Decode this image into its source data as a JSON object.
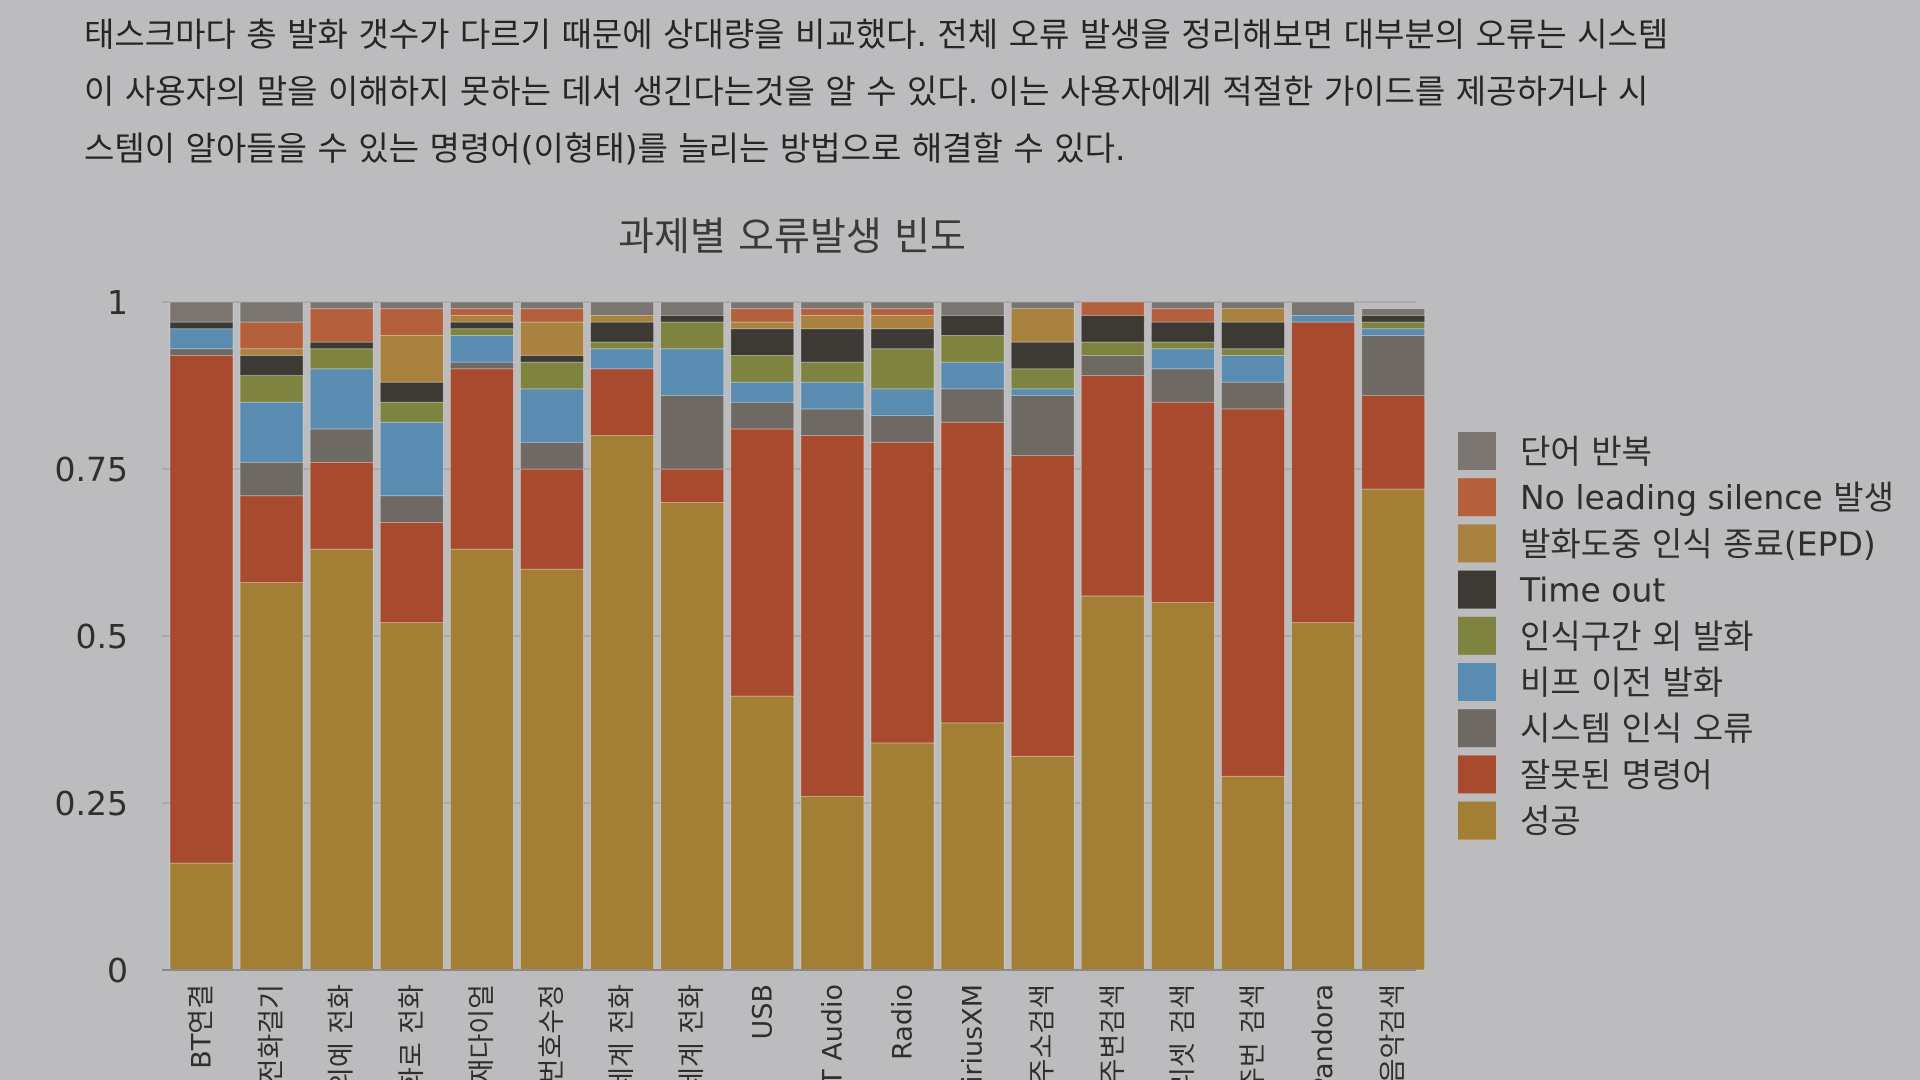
{
  "intro": {
    "line1": "태스크마다 총 발화 갯수가 다르기 때문에 상대량을 비교했다. 전체 오류 발생을 정리해보면 대부분의 오류는 시스템",
    "line2": "이 사용자의 말을 이해하지 못하는 데서 생긴다는것을 알 수 있다. 이는 사용자에게 적절한 가이드를 제공하거나 시",
    "line3": "스템이 알아들을 수 있는 명령어(이형태)를 늘리는 방법으로 해결할 수 있다."
  },
  "chart_data": {
    "type": "bar",
    "stacked": true,
    "title": "과제별 오류발생 빈도",
    "xlabel": "",
    "ylabel": "",
    "ylim": [
      0,
      1
    ],
    "y_ticks": [
      "0",
      "0.25",
      "0.5",
      "0.75",
      "1"
    ],
    "grid": true,
    "legend_position": "right",
    "categories": [
      "BT연결",
      "전화걸기",
      "의예 전화",
      "통화로 전화",
      "재다이얼",
      "번호수정",
      "세계 전화",
      "세계 전화",
      "USB",
      "T Audio",
      "Radio",
      "iriusXM",
      "주소검색",
      "주변검색",
      "리셋 검색",
      "주번 검색",
      "Pandora",
      "음악검색"
    ],
    "series": [
      {
        "name": "성공",
        "color": "#a27f34",
        "values": [
          0.16,
          0.58,
          0.63,
          0.52,
          0.63,
          0.6,
          0.8,
          0.7,
          0.41,
          0.26,
          0.34,
          0.37,
          0.32,
          0.56,
          0.55,
          0.29,
          0.52,
          0.72
        ]
      },
      {
        "name": "잘못된 명령어",
        "color": "#a84a2d",
        "values": [
          0.76,
          0.13,
          0.13,
          0.15,
          0.27,
          0.15,
          0.1,
          0.05,
          0.4,
          0.54,
          0.45,
          0.45,
          0.45,
          0.33,
          0.3,
          0.55,
          0.45,
          0.14
        ]
      },
      {
        "name": "시스템 인식 오류",
        "color": "#6e6963",
        "values": [
          0.01,
          0.05,
          0.05,
          0.04,
          0.01,
          0.04,
          0.0,
          0.11,
          0.04,
          0.04,
          0.04,
          0.05,
          0.09,
          0.03,
          0.05,
          0.04,
          0.0,
          0.09
        ]
      },
      {
        "name": "비프 이전 발화",
        "color": "#5a8bb0",
        "values": [
          0.03,
          0.09,
          0.09,
          0.11,
          0.04,
          0.08,
          0.03,
          0.07,
          0.03,
          0.04,
          0.04,
          0.04,
          0.01,
          0.0,
          0.03,
          0.04,
          0.01,
          0.01
        ]
      },
      {
        "name": "인식구간 외 발화",
        "color": "#7f8340",
        "values": [
          0.0,
          0.04,
          0.03,
          0.03,
          0.01,
          0.04,
          0.01,
          0.04,
          0.04,
          0.03,
          0.06,
          0.04,
          0.03,
          0.02,
          0.01,
          0.01,
          0.0,
          0.01
        ]
      },
      {
        "name": "Time out",
        "color": "#3d3a36",
        "values": [
          0.01,
          0.03,
          0.01,
          0.03,
          0.01,
          0.01,
          0.03,
          0.01,
          0.04,
          0.05,
          0.03,
          0.03,
          0.04,
          0.04,
          0.03,
          0.04,
          0.0,
          0.01
        ]
      },
      {
        "name": "발화도중 인식 종료(EPD)",
        "color": "#a8823e",
        "values": [
          0.0,
          0.01,
          0.0,
          0.07,
          0.01,
          0.05,
          0.01,
          0.0,
          0.01,
          0.02,
          0.02,
          0.0,
          0.05,
          0.0,
          0.0,
          0.02,
          0.0,
          0.0
        ]
      },
      {
        "name": "No leading silence 발생",
        "color": "#b4603d",
        "values": [
          0.0,
          0.04,
          0.05,
          0.04,
          0.01,
          0.02,
          0.0,
          0.0,
          0.02,
          0.01,
          0.01,
          0.0,
          0.0,
          0.02,
          0.02,
          0.0,
          0.0,
          0.0
        ]
      },
      {
        "name": "단어 반복",
        "color": "#7a7570",
        "values": [
          0.03,
          0.03,
          0.01,
          0.01,
          0.01,
          0.01,
          0.02,
          0.02,
          0.01,
          0.01,
          0.01,
          0.02,
          0.01,
          0.0,
          0.01,
          0.01,
          0.02,
          0.01
        ]
      }
    ],
    "legend_order": [
      "단어 반복",
      "No leading silence 발생",
      "발화도중 인식 종료(EPD)",
      "Time out",
      "인식구간 외 발화",
      "비프 이전 발화",
      "시스템 인식 오류",
      "잘못된 명령어",
      "성공"
    ]
  }
}
